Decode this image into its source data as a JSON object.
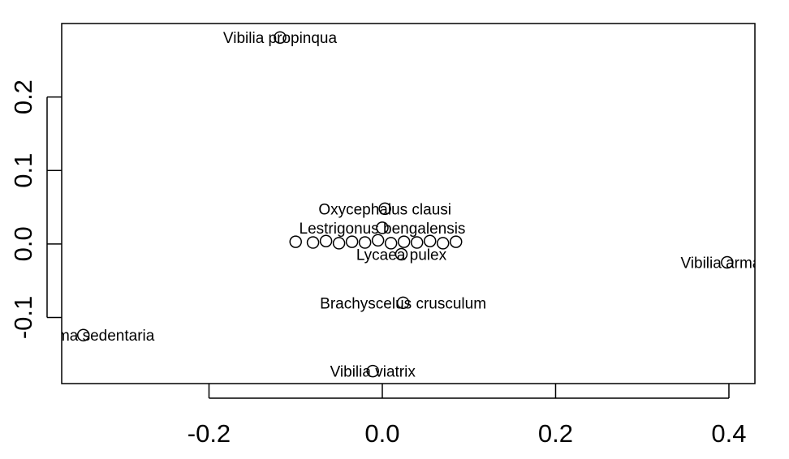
{
  "chart_data": {
    "type": "scatter",
    "title": "",
    "xlabel": "",
    "ylabel": "",
    "xlim": [
      -0.37,
      0.43
    ],
    "ylim": [
      -0.19,
      0.3
    ],
    "x_ticks": [
      {
        "value": -0.2,
        "label": "-0.2"
      },
      {
        "value": 0.0,
        "label": "0.0"
      },
      {
        "value": 0.2,
        "label": "0.2"
      },
      {
        "value": 0.4,
        "label": "0.4"
      }
    ],
    "y_ticks": [
      {
        "value": -0.1,
        "label": "-0.1"
      },
      {
        "value": 0.0,
        "label": "0.0"
      },
      {
        "value": 0.1,
        "label": "0.1"
      },
      {
        "value": 0.2,
        "label": "0.2"
      }
    ],
    "point_style": "open-circle",
    "labeled_points": [
      {
        "label": "Vibilia propinqua",
        "x": -0.118,
        "y": 0.281
      },
      {
        "label": "Oxycephalus clausi",
        "x": 0.003,
        "y": 0.048
      },
      {
        "label": "Lestrigonus bengalensis",
        "x": 0.0,
        "y": 0.022
      },
      {
        "label": "Lycaea pulex",
        "x": 0.022,
        "y": -0.014
      },
      {
        "label": "Brachyscelus crusculum",
        "x": 0.024,
        "y": -0.08
      },
      {
        "label": "Vibilia armata",
        "x": 0.398,
        "y": -0.025
      },
      {
        "label": "Vibilia viatrix",
        "x": -0.011,
        "y": -0.173
      },
      {
        "label": "Phronima sedentaria",
        "x": -0.345,
        "y": -0.124
      }
    ],
    "cluster_points": [
      {
        "x": -0.1,
        "y": 0.003
      },
      {
        "x": -0.08,
        "y": 0.002
      },
      {
        "x": -0.065,
        "y": 0.004
      },
      {
        "x": -0.05,
        "y": 0.001
      },
      {
        "x": -0.035,
        "y": 0.003
      },
      {
        "x": -0.02,
        "y": 0.002
      },
      {
        "x": -0.005,
        "y": 0.005
      },
      {
        "x": 0.01,
        "y": 0.001
      },
      {
        "x": 0.025,
        "y": 0.003
      },
      {
        "x": 0.04,
        "y": 0.002
      },
      {
        "x": 0.055,
        "y": 0.004
      },
      {
        "x": 0.07,
        "y": 0.001
      },
      {
        "x": 0.085,
        "y": 0.003
      }
    ]
  }
}
